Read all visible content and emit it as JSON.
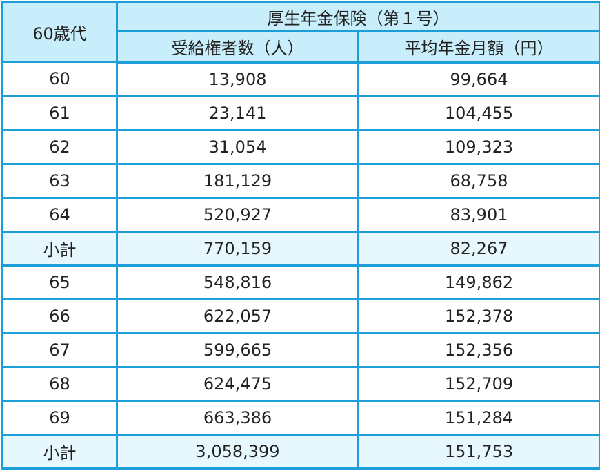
{
  "table": {
    "corner_header": "60歳代",
    "group_header": "厚生年金保険（第１号）",
    "column_headers": [
      "受給権者数（人）",
      "平均年金月額（円）"
    ],
    "rows": [
      {
        "age": "60",
        "recipients": "13,908",
        "avg_monthly": "99,664",
        "subtotal": false
      },
      {
        "age": "61",
        "recipients": "23,141",
        "avg_monthly": "104,455",
        "subtotal": false
      },
      {
        "age": "62",
        "recipients": "31,054",
        "avg_monthly": "109,323",
        "subtotal": false
      },
      {
        "age": "63",
        "recipients": "181,129",
        "avg_monthly": "68,758",
        "subtotal": false
      },
      {
        "age": "64",
        "recipients": "520,927",
        "avg_monthly": "83,901",
        "subtotal": false
      },
      {
        "age": "小計",
        "recipients": "770,159",
        "avg_monthly": "82,267",
        "subtotal": true
      },
      {
        "age": "65",
        "recipients": "548,816",
        "avg_monthly": "149,862",
        "subtotal": false
      },
      {
        "age": "66",
        "recipients": "622,057",
        "avg_monthly": "152,378",
        "subtotal": false
      },
      {
        "age": "67",
        "recipients": "599,665",
        "avg_monthly": "152,356",
        "subtotal": false
      },
      {
        "age": "68",
        "recipients": "624,475",
        "avg_monthly": "152,709",
        "subtotal": false
      },
      {
        "age": "69",
        "recipients": "663,386",
        "avg_monthly": "151,284",
        "subtotal": false
      },
      {
        "age": "小計",
        "recipients": "3,058,399",
        "avg_monthly": "151,753",
        "subtotal": true
      }
    ]
  },
  "colors": {
    "border": "#1c9fd9",
    "header_bg": "#c9eefb",
    "subtotal_bg": "#e6f7fd"
  }
}
